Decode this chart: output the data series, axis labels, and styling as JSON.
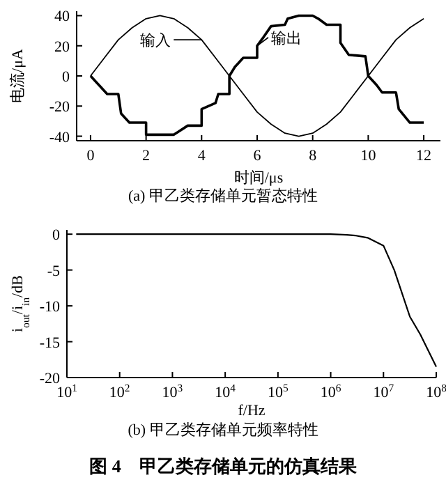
{
  "chart_data": [
    {
      "type": "line",
      "title": "(a) 甲乙类存储单元暂态特性",
      "xlabel": "时间/μs",
      "ylabel": "电流/μA",
      "xlim": [
        -0.5,
        12.6
      ],
      "ylim": [
        -43,
        43
      ],
      "xticks": [
        0,
        2,
        4,
        6,
        8,
        10,
        12
      ],
      "yticks": [
        -40,
        -20,
        0,
        20,
        40
      ],
      "grid": false,
      "marker": "none",
      "line_style": "solid",
      "series": [
        {
          "color": "#000000",
          "x": [
            0,
            0.5,
            1,
            1.5,
            2,
            2.5,
            3,
            3.5,
            4,
            4.5,
            5,
            5.5,
            6,
            6.5,
            7,
            7.5,
            8,
            8.5,
            9,
            9.5,
            10,
            10.5,
            11,
            11.5,
            12
          ],
          "values": [
            0,
            12,
            24,
            32,
            38,
            40,
            38,
            32,
            24,
            12,
            0,
            -12,
            -24,
            -32,
            -38,
            -40,
            -38,
            -32,
            -24,
            -12,
            0,
            12,
            24,
            32,
            38
          ]
        },
        {
          "color": "#000000",
          "x": [
            0,
            0.3,
            0.6,
            1,
            1.1,
            1.4,
            2,
            2,
            3,
            3.5,
            4,
            4,
            4.5,
            4.6,
            5,
            5,
            5.2,
            5.5,
            6,
            6,
            6.2,
            6.5,
            7,
            7.1,
            7.5,
            8,
            8.2,
            8.5,
            9,
            9,
            9.3,
            9.9,
            10,
            10.3,
            10.5,
            11,
            11.1,
            11.5,
            12
          ],
          "values": [
            0,
            -6,
            -12,
            -12,
            -25,
            -31,
            -31,
            -39,
            -39,
            -33,
            -33,
            -22,
            -18,
            -12,
            -12,
            0,
            6,
            12,
            12,
            20,
            25,
            33,
            34,
            38,
            40,
            40,
            38,
            34,
            34,
            22,
            14,
            13,
            0,
            -6,
            -11,
            -11,
            -22,
            -31,
            -31
          ]
        }
      ],
      "annotations": [
        {
          "text": "输入",
          "x": 4,
          "y": 24
        },
        {
          "text": "输出",
          "x": 6,
          "y": 20
        }
      ]
    },
    {
      "type": "line",
      "title": "(b) 甲乙类存储单元频率特性",
      "xlabel": "f/Hz",
      "ylabel": "i$_{out}$/i$_{in}$/dB",
      "log": "x",
      "xlim": [
        10,
        100000000
      ],
      "ylim": [
        -20,
        0.6
      ],
      "xticks": [
        {
          "value": 10,
          "label": "10$^{1}$"
        },
        {
          "value": 100,
          "label": "10$^{2}$"
        },
        {
          "value": 1000,
          "label": "10$^{3}$"
        },
        {
          "value": 10000,
          "label": "10$^{4}$"
        },
        {
          "value": 100000,
          "label": "10$^{5}$"
        },
        {
          "value": 1000000,
          "label": "10$^{6}$"
        },
        {
          "value": 10000000,
          "label": "10$^{7}$"
        },
        {
          "value": 100000000,
          "label": "10$^{8}$"
        }
      ],
      "yticks": [
        0,
        -5,
        -10,
        -15,
        -20
      ],
      "grid": false,
      "marker": "none",
      "line_style": "solid",
      "series": [
        {
          "color": "#000000",
          "x": [
            15,
            100,
            1000,
            10000,
            100000,
            1000000,
            2000000,
            3000000,
            5000000,
            10000000,
            16000000,
            31600000,
            50000000,
            100000000
          ],
          "values": [
            0,
            0,
            0,
            0,
            0,
            0,
            -0.1,
            -0.2,
            -0.5,
            -1.6,
            -5,
            -11.5,
            -14,
            -18.5
          ]
        }
      ],
      "annotations": [
        "图 4　甲乙类存储单元的仿真结果"
      ]
    }
  ]
}
